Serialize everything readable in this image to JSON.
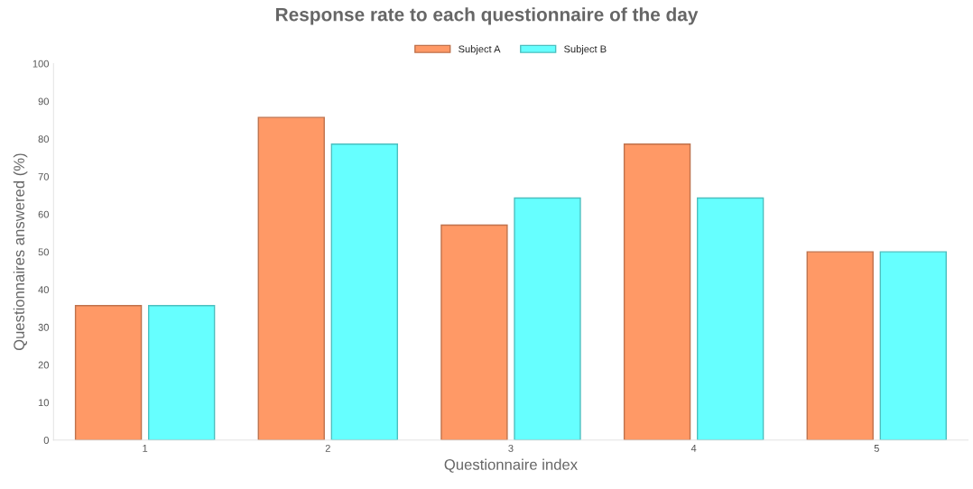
{
  "chart_data": {
    "type": "bar",
    "title": "Response rate to each questionnaire of the day",
    "xlabel": "Questionnaire index",
    "ylabel": "Questionnaires answered (%)",
    "categories": [
      "1",
      "2",
      "3",
      "4",
      "5"
    ],
    "series": [
      {
        "name": "Subject A",
        "color": "#ff9966",
        "values": [
          35.7,
          85.7,
          57.1,
          78.6,
          50
        ]
      },
      {
        "name": "Subject B",
        "color": "#66ffff",
        "values": [
          35.7,
          78.6,
          64.3,
          64.3,
          50
        ]
      }
    ],
    "ylim": [
      0,
      100
    ],
    "yticks": [
      0,
      10,
      20,
      30,
      40,
      50,
      60,
      70,
      80,
      90,
      100
    ],
    "grid": false,
    "legend": "top"
  }
}
